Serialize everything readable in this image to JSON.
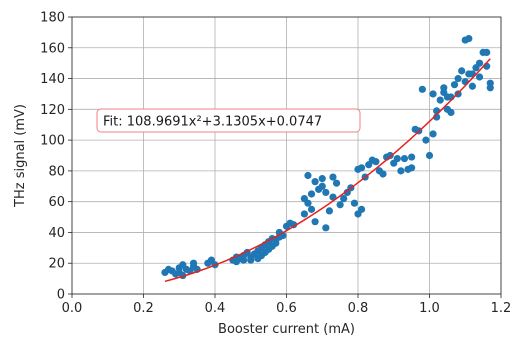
{
  "chart_data": {
    "type": "scatter",
    "xlabel": "Booster current (mA)",
    "ylabel": "THz signal (mV)",
    "xlim": [
      0.0,
      1.2
    ],
    "ylim": [
      0,
      180
    ],
    "xticks": [
      "0.0",
      "0.2",
      "0.4",
      "0.6",
      "0.8",
      "1.0",
      "1.2"
    ],
    "yticks": [
      "0",
      "20",
      "40",
      "60",
      "80",
      "100",
      "120",
      "140",
      "160",
      "180"
    ],
    "grid": true,
    "annotation": "Fit: 108.9691x²+3.1305x+0.0747",
    "colors": {
      "points": "#1f77b4",
      "fit": "#e8211f",
      "grid": "#b0b0b0"
    },
    "fit": {
      "coefficients": [
        108.9691,
        3.1305,
        0.0747
      ],
      "x_range": [
        0.26,
        1.17
      ]
    },
    "points": [
      [
        0.26,
        14
      ],
      [
        0.27,
        16
      ],
      [
        0.28,
        15
      ],
      [
        0.29,
        13
      ],
      [
        0.3,
        17
      ],
      [
        0.3,
        14
      ],
      [
        0.31,
        12
      ],
      [
        0.31,
        19
      ],
      [
        0.32,
        16
      ],
      [
        0.33,
        15
      ],
      [
        0.34,
        18
      ],
      [
        0.34,
        20
      ],
      [
        0.35,
        16
      ],
      [
        0.38,
        20
      ],
      [
        0.39,
        22
      ],
      [
        0.4,
        19
      ],
      [
        0.45,
        22
      ],
      [
        0.46,
        24
      ],
      [
        0.46,
        21
      ],
      [
        0.47,
        23
      ],
      [
        0.48,
        22
      ],
      [
        0.48,
        25
      ],
      [
        0.49,
        27
      ],
      [
        0.5,
        24
      ],
      [
        0.5,
        22
      ],
      [
        0.51,
        26
      ],
      [
        0.52,
        23
      ],
      [
        0.52,
        28
      ],
      [
        0.53,
        25
      ],
      [
        0.53,
        30
      ],
      [
        0.54,
        27
      ],
      [
        0.54,
        32
      ],
      [
        0.55,
        29
      ],
      [
        0.55,
        34
      ],
      [
        0.56,
        31
      ],
      [
        0.56,
        36
      ],
      [
        0.57,
        33
      ],
      [
        0.57,
        35
      ],
      [
        0.58,
        37
      ],
      [
        0.58,
        40
      ],
      [
        0.59,
        38
      ],
      [
        0.6,
        44
      ],
      [
        0.61,
        46
      ],
      [
        0.62,
        45
      ],
      [
        0.65,
        52
      ],
      [
        0.65,
        62
      ],
      [
        0.66,
        59
      ],
      [
        0.66,
        77
      ],
      [
        0.67,
        55
      ],
      [
        0.67,
        65
      ],
      [
        0.68,
        73
      ],
      [
        0.68,
        47
      ],
      [
        0.69,
        68
      ],
      [
        0.7,
        70
      ],
      [
        0.7,
        75
      ],
      [
        0.71,
        66
      ],
      [
        0.71,
        43
      ],
      [
        0.72,
        54
      ],
      [
        0.73,
        63
      ],
      [
        0.73,
        76
      ],
      [
        0.74,
        72
      ],
      [
        0.75,
        58
      ],
      [
        0.76,
        62
      ],
      [
        0.77,
        66
      ],
      [
        0.78,
        69
      ],
      [
        0.79,
        59
      ],
      [
        0.8,
        52
      ],
      [
        0.8,
        81
      ],
      [
        0.81,
        82
      ],
      [
        0.81,
        55
      ],
      [
        0.82,
        76
      ],
      [
        0.83,
        84
      ],
      [
        0.84,
        87
      ],
      [
        0.85,
        86
      ],
      [
        0.86,
        80
      ],
      [
        0.87,
        78
      ],
      [
        0.88,
        89
      ],
      [
        0.89,
        90
      ],
      [
        0.9,
        85
      ],
      [
        0.91,
        88
      ],
      [
        0.92,
        80
      ],
      [
        0.93,
        88
      ],
      [
        0.94,
        81
      ],
      [
        0.95,
        82
      ],
      [
        0.95,
        89
      ],
      [
        0.96,
        107
      ],
      [
        0.97,
        106
      ],
      [
        0.98,
        133
      ],
      [
        0.99,
        100
      ],
      [
        1.0,
        90
      ],
      [
        1.01,
        104
      ],
      [
        1.01,
        130
      ],
      [
        1.02,
        115
      ],
      [
        1.02,
        119
      ],
      [
        1.03,
        126
      ],
      [
        1.04,
        131
      ],
      [
        1.04,
        134
      ],
      [
        1.05,
        120
      ],
      [
        1.05,
        128
      ],
      [
        1.06,
        118
      ],
      [
        1.06,
        128
      ],
      [
        1.07,
        136
      ],
      [
        1.08,
        140
      ],
      [
        1.08,
        130
      ],
      [
        1.09,
        145
      ],
      [
        1.1,
        165
      ],
      [
        1.1,
        138
      ],
      [
        1.11,
        143
      ],
      [
        1.11,
        166
      ],
      [
        1.12,
        135
      ],
      [
        1.12,
        143
      ],
      [
        1.13,
        147
      ],
      [
        1.14,
        150
      ],
      [
        1.14,
        141
      ],
      [
        1.15,
        157
      ],
      [
        1.16,
        157
      ],
      [
        1.16,
        148
      ],
      [
        1.17,
        137
      ],
      [
        1.17,
        134
      ]
    ]
  }
}
